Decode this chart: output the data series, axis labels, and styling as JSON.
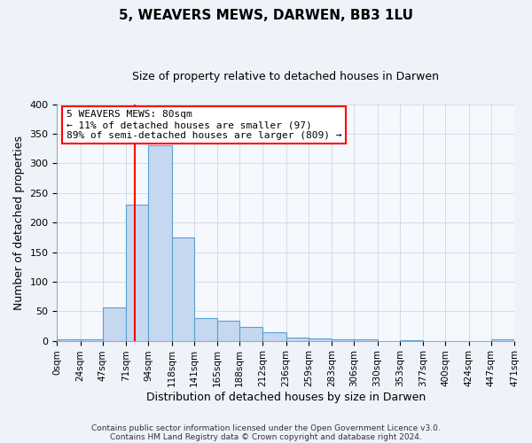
{
  "title": "5, WEAVERS MEWS, DARWEN, BB3 1LU",
  "subtitle": "Size of property relative to detached houses in Darwen",
  "xlabel": "Distribution of detached houses by size in Darwen",
  "ylabel": "Number of detached properties",
  "bin_edges": [
    0,
    24,
    47,
    71,
    94,
    118,
    141,
    165,
    188,
    212,
    236,
    259,
    283,
    306,
    330,
    353,
    377,
    400,
    424,
    447,
    471
  ],
  "bin_labels": [
    "0sqm",
    "24sqm",
    "47sqm",
    "71sqm",
    "94sqm",
    "118sqm",
    "141sqm",
    "165sqm",
    "188sqm",
    "212sqm",
    "236sqm",
    "259sqm",
    "283sqm",
    "306sqm",
    "330sqm",
    "353sqm",
    "377sqm",
    "400sqm",
    "424sqm",
    "447sqm",
    "471sqm"
  ],
  "bar_heights": [
    2,
    2,
    57,
    230,
    330,
    175,
    39,
    34,
    23,
    15,
    5,
    4,
    2,
    2,
    0,
    1,
    0,
    0,
    0,
    2
  ],
  "bar_color": "#c5d8f0",
  "bar_edge_color": "#5a9fd4",
  "bar_edge_width": 0.8,
  "red_line_x": 80,
  "ylim": [
    0,
    400
  ],
  "yticks": [
    0,
    50,
    100,
    150,
    200,
    250,
    300,
    350,
    400
  ],
  "annotation_line1": "5 WEAVERS MEWS: 80sqm",
  "annotation_line2": "← 11% of detached houses are smaller (97)",
  "annotation_line3": "89% of semi-detached houses are larger (809) →",
  "footer_line1": "Contains HM Land Registry data © Crown copyright and database right 2024.",
  "footer_line2": "Contains public sector information licensed under the Open Government Licence v3.0.",
  "bg_color": "#eef2f9",
  "plot_bg_color": "#f5f8fd",
  "grid_color": "#c8d0dc",
  "title_fontsize": 11,
  "subtitle_fontsize": 9,
  "xlabel_fontsize": 9,
  "ylabel_fontsize": 9,
  "tick_fontsize": 7.5,
  "footer_fontsize": 6.5
}
